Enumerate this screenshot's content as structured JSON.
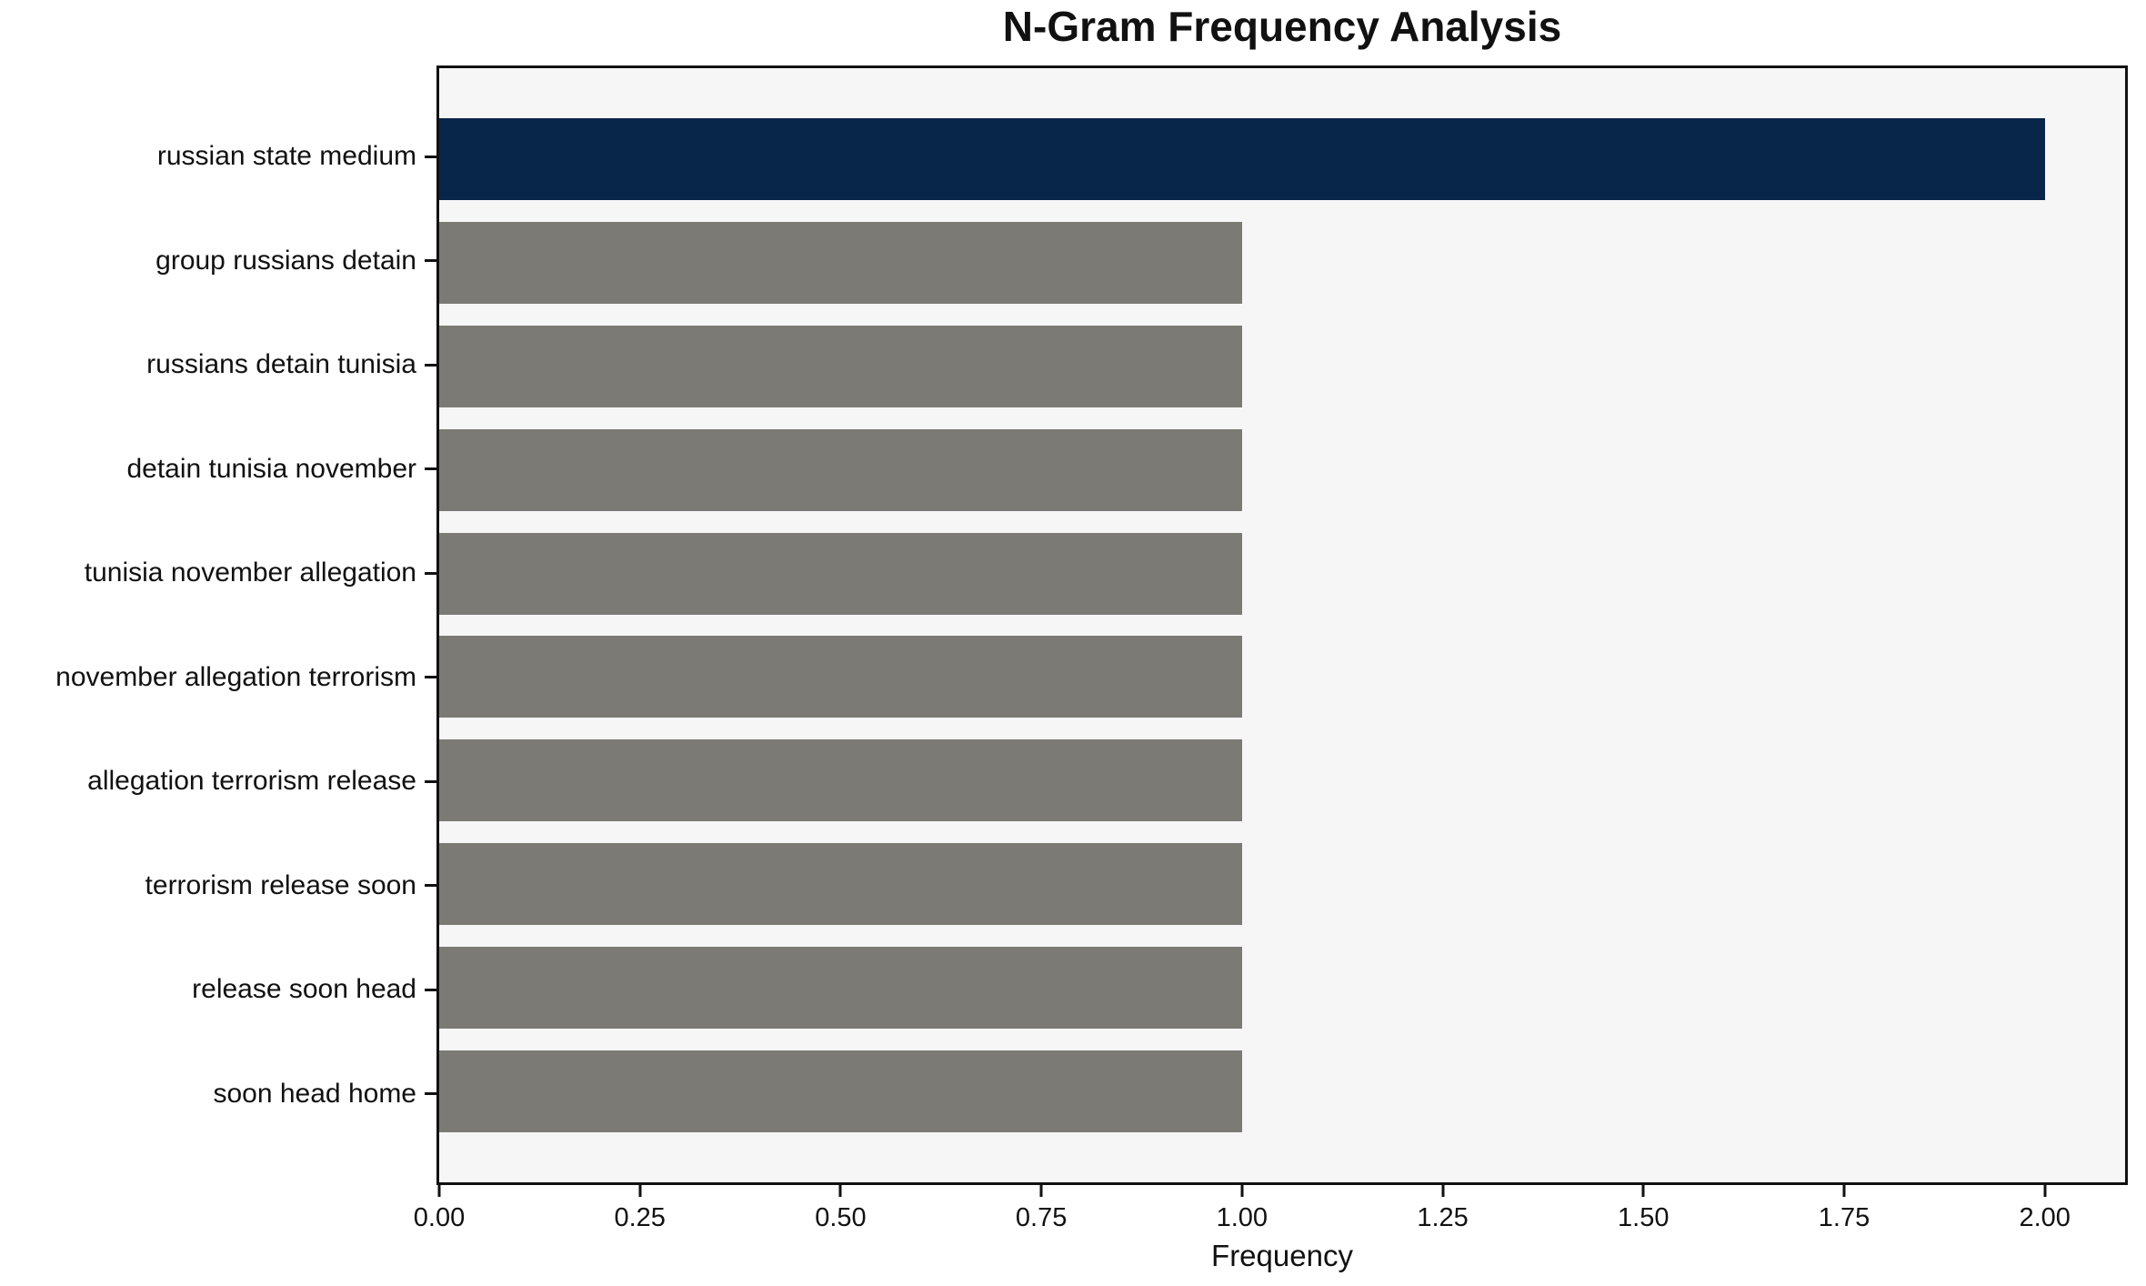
{
  "chart_data": {
    "type": "bar",
    "orientation": "horizontal",
    "title": "N-Gram Frequency Analysis",
    "xlabel": "Frequency",
    "ylabel": "",
    "categories": [
      "russian state medium",
      "group russians detain",
      "russians detain tunisia",
      "detain tunisia november",
      "tunisia november allegation",
      "november allegation terrorism",
      "allegation terrorism release",
      "terrorism release soon",
      "release soon head",
      "soon head home"
    ],
    "values": [
      2,
      1,
      1,
      1,
      1,
      1,
      1,
      1,
      1,
      1
    ],
    "highlight_index": 0,
    "xlim": [
      0,
      2.1
    ],
    "x_ticks": [
      {
        "label": "0.00",
        "value": 0.0
      },
      {
        "label": "0.25",
        "value": 0.25
      },
      {
        "label": "0.50",
        "value": 0.5
      },
      {
        "label": "0.75",
        "value": 0.75
      },
      {
        "label": "1.00",
        "value": 1.0
      },
      {
        "label": "1.25",
        "value": 1.25
      },
      {
        "label": "1.50",
        "value": 1.5
      },
      {
        "label": "1.75",
        "value": 1.75
      },
      {
        "label": "2.00",
        "value": 2.0
      }
    ],
    "grid": false,
    "legend": "none",
    "colors": {
      "highlight_bar": "#08254A",
      "default_bar": "#7B7A75",
      "plot_background": "#F6F6F6",
      "figure_background": "#FFFFFF",
      "frame": "#111111",
      "text": "#111111"
    }
  }
}
